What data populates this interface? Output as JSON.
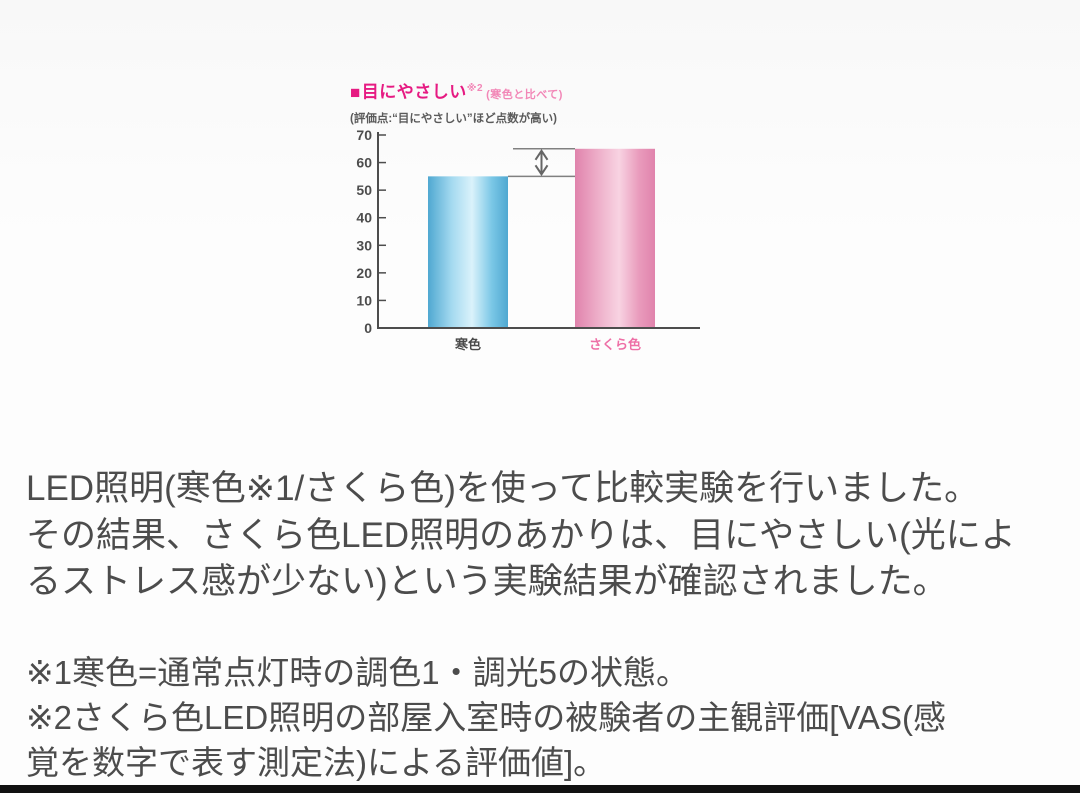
{
  "page": {
    "background": "#fbfbfb",
    "bottom_bar_color": "#111111"
  },
  "chart": {
    "title_bullet": "■",
    "title": "目にやさしい",
    "title_note": "※2",
    "title_suffix": "(寒色と比べて)",
    "subtitle": "(評価点:“目にやさしい”ほど点数が高い)",
    "title_color": "#e61a82",
    "suffix_color": "#f287b7"
  },
  "chart_data": {
    "type": "bar",
    "title": "目にやさしい※2(寒色と比べて)",
    "subtitle": "評価点:“目にやさしい”ほど点数が高い",
    "categories": [
      "寒色",
      "さくら色"
    ],
    "values": [
      55,
      65
    ],
    "bar_colors": [
      "#4fa8d1",
      "#e083ac"
    ],
    "category_label_colors": [
      "#4a4a4a",
      "#ee6fa6"
    ],
    "axis_color": "#4d4d4d",
    "ylim": [
      0,
      70
    ],
    "yticks": [
      0,
      10,
      20,
      30,
      40,
      50,
      60,
      70
    ],
    "xlabel": "",
    "ylabel": "",
    "grid": false,
    "legend": "none",
    "annotation": "二本の棒の上端の差を示す上下両方向矢印(約10ポイント差)"
  },
  "body": {
    "lines": [
      "LED照明(寒色※1/さくら色)を使って比較実験を行いました。",
      "その結果、さくら色LED照明のあかりは、目にやさしい(光によ",
      "るストレス感が少ない)という実験結果が確認されました。"
    ]
  },
  "footnotes": {
    "lines": [
      "※1寒色=通常点灯時の調色1・調光5の状態。",
      "※2さくら色LED照明の部屋入室時の被験者の主観評価[VAS(感",
      "覚を数字で表す測定法)による評価値]。"
    ]
  }
}
